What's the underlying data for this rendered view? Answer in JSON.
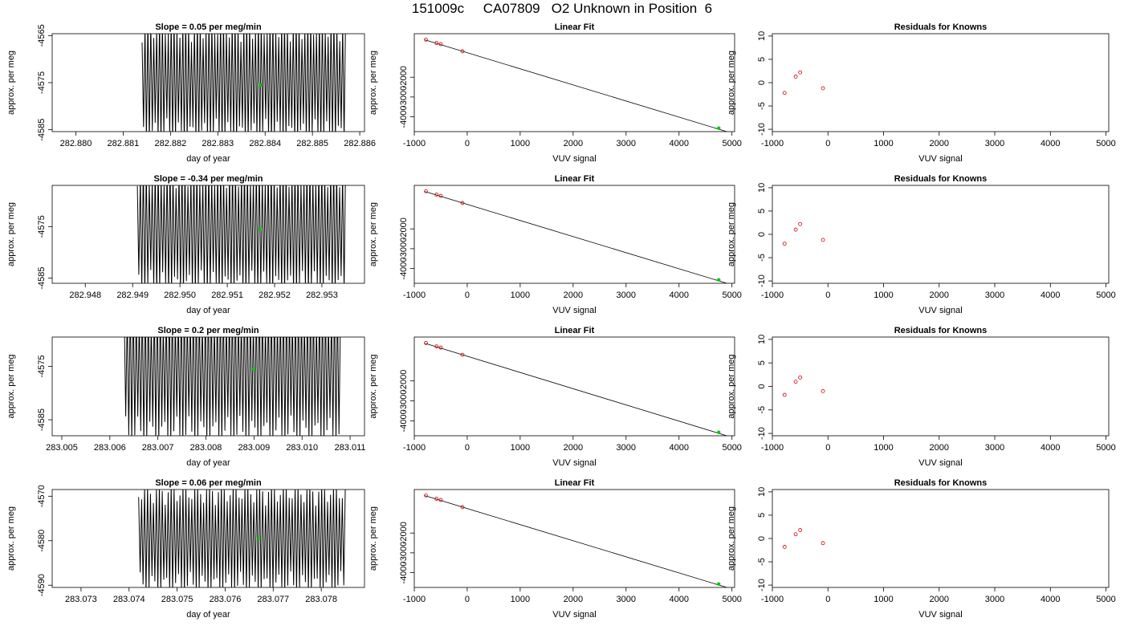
{
  "title": "151009c     CA07809   O2 Unknown in Position  6",
  "colors": {
    "trace": "#000000",
    "known": "#cc0000",
    "unknown": "#00cc00",
    "axis": "#000000"
  },
  "chart_data": [
    {
      "type": "line",
      "title": "Slope =  0.05  per meg/min",
      "xlabel": "day of year",
      "ylabel": "approx. per meg",
      "xlim": [
        282.8795,
        282.8861
      ],
      "ylim": [
        -4585.4,
        -4564.6
      ],
      "xticks": [
        "282.880",
        "282.881",
        "282.882",
        "282.883",
        "282.884",
        "282.885",
        "282.886"
      ],
      "yticks": [
        "-4565",
        "-4575",
        "-4585"
      ],
      "trace": {
        "start": 282.8814,
        "end": 282.8857,
        "center": -4574.5,
        "amplitude": 11.5,
        "cycles": 70
      },
      "unknown_point": {
        "x": 282.8839,
        "y": -4575.5
      }
    },
    {
      "type": "scatter",
      "title": "Linear Fit",
      "xlabel": "VUV signal",
      "ylabel": "approx. per meg",
      "xlim": [
        -1000,
        5050
      ],
      "ylim": [
        -4750,
        200
      ],
      "xticks": [
        "-1000",
        "0",
        "1000",
        "2000",
        "3000",
        "4000",
        "5000"
      ],
      "yticks": [
        "-2000",
        "-3000",
        "-4000"
      ],
      "fit_line": {
        "x": [
          -800,
          4950
        ],
        "y": [
          -110,
          -4790
        ]
      },
      "knowns": [
        {
          "x": -780,
          "y": -100
        },
        {
          "x": -580,
          "y": -270
        },
        {
          "x": -500,
          "y": -330
        },
        {
          "x": -90,
          "y": -690
        }
      ],
      "unknown_point": {
        "x": 4750,
        "y": -4575
      }
    },
    {
      "type": "scatter",
      "title": "Residuals for Knowns",
      "xlabel": "VUV signal",
      "ylabel": "approx. per meg",
      "xlim": [
        -1000,
        5050
      ],
      "ylim": [
        -10.5,
        10.5
      ],
      "xticks": [
        "-1000",
        "0",
        "1000",
        "2000",
        "3000",
        "4000",
        "5000"
      ],
      "yticks": [
        "10",
        "5",
        "0",
        "-5",
        "-10"
      ],
      "knowns": [
        {
          "x": -780,
          "y": -2.2
        },
        {
          "x": -580,
          "y": 1.3
        },
        {
          "x": -500,
          "y": 2.2
        },
        {
          "x": -90,
          "y": -1.2
        }
      ]
    },
    {
      "type": "line",
      "title": "Slope =  -0.34  per meg/min",
      "xlabel": "day of year",
      "ylabel": "approx. per meg",
      "xlim": [
        282.9473,
        282.9539
      ],
      "ylim": [
        -4586.0,
        -4567.0
      ],
      "xticks": [
        "282.948",
        "282.949",
        "282.950",
        "282.951",
        "282.952",
        "282.953"
      ],
      "yticks": [
        "-4575",
        "-4585"
      ],
      "trace": {
        "start": 282.9491,
        "end": 282.9535,
        "center": -4575.5,
        "amplitude": 11.0,
        "cycles": 70
      },
      "unknown_point": {
        "x": 282.9517,
        "y": -4575.5
      }
    },
    {
      "type": "scatter",
      "title": "Linear Fit",
      "xlabel": "VUV signal",
      "ylabel": "approx. per meg",
      "xlim": [
        -1000,
        5050
      ],
      "ylim": [
        -4750,
        200
      ],
      "xticks": [
        "-1000",
        "0",
        "1000",
        "2000",
        "3000",
        "4000",
        "5000"
      ],
      "yticks": [
        "-2000",
        "-3000",
        "-4000"
      ],
      "fit_line": {
        "x": [
          -800,
          4950
        ],
        "y": [
          -110,
          -4790
        ]
      },
      "knowns": [
        {
          "x": -780,
          "y": -100
        },
        {
          "x": -580,
          "y": -270
        },
        {
          "x": -500,
          "y": -330
        },
        {
          "x": -90,
          "y": -690
        }
      ],
      "unknown_point": {
        "x": 4750,
        "y": -4575
      }
    },
    {
      "type": "scatter",
      "title": "Residuals for Knowns",
      "xlabel": "VUV signal",
      "ylabel": "approx. per meg",
      "xlim": [
        -1000,
        5050
      ],
      "ylim": [
        -10.5,
        10.5
      ],
      "xticks": [
        "-1000",
        "0",
        "1000",
        "2000",
        "3000",
        "4000",
        "5000"
      ],
      "yticks": [
        "10",
        "5",
        "0",
        "-5",
        "-10"
      ],
      "knowns": [
        {
          "x": -780,
          "y": -2.0
        },
        {
          "x": -580,
          "y": 1.0
        },
        {
          "x": -500,
          "y": 2.2
        },
        {
          "x": -90,
          "y": -1.2
        }
      ]
    },
    {
      "type": "line",
      "title": "Slope =  0.2  per meg/min",
      "xlabel": "day of year",
      "ylabel": "approx. per meg",
      "xlim": [
        283.0048,
        283.0113
      ],
      "ylim": [
        -4588.0,
        -4569.5
      ],
      "xticks": [
        "283.005",
        "283.006",
        "283.007",
        "283.008",
        "283.009",
        "283.010",
        "283.011"
      ],
      "yticks": [
        "-4575",
        "-4585"
      ],
      "trace": {
        "start": 283.0063,
        "end": 283.0108,
        "center": -4575.5,
        "amplitude": 12.0,
        "cycles": 72
      },
      "unknown_point": {
        "x": 283.009,
        "y": -4575.5
      }
    },
    {
      "type": "scatter",
      "title": "Linear Fit",
      "xlabel": "VUV signal",
      "ylabel": "approx. per meg",
      "xlim": [
        -1000,
        5050
      ],
      "ylim": [
        -4750,
        200
      ],
      "xticks": [
        "-1000",
        "0",
        "1000",
        "2000",
        "3000",
        "4000",
        "5000"
      ],
      "yticks": [
        "-2000",
        "-3000",
        "-4000"
      ],
      "fit_line": {
        "x": [
          -800,
          4950
        ],
        "y": [
          -110,
          -4790
        ]
      },
      "knowns": [
        {
          "x": -780,
          "y": -100
        },
        {
          "x": -580,
          "y": -270
        },
        {
          "x": -500,
          "y": -330
        },
        {
          "x": -90,
          "y": -690
        }
      ],
      "unknown_point": {
        "x": 4750,
        "y": -4575
      }
    },
    {
      "type": "scatter",
      "title": "Residuals for Knowns",
      "xlabel": "VUV signal",
      "ylabel": "approx. per meg",
      "xlim": [
        -1000,
        5050
      ],
      "ylim": [
        -10.5,
        10.5
      ],
      "xticks": [
        "-1000",
        "0",
        "1000",
        "2000",
        "3000",
        "4000",
        "5000"
      ],
      "yticks": [
        "10",
        "5",
        "0",
        "-5",
        "-10"
      ],
      "knowns": [
        {
          "x": -780,
          "y": -1.8
        },
        {
          "x": -580,
          "y": 1.0
        },
        {
          "x": -500,
          "y": 1.9
        },
        {
          "x": -90,
          "y": -1.0
        }
      ]
    },
    {
      "type": "line",
      "title": "Slope =  0.06  per meg/min",
      "xlabel": "day of year",
      "ylabel": "approx. per meg",
      "xlim": [
        283.0724,
        283.0789
      ],
      "ylim": [
        -4590.5,
        -4568.5
      ],
      "xticks": [
        "283.073",
        "283.074",
        "283.075",
        "283.076",
        "283.077",
        "283.078"
      ],
      "yticks": [
        "-4570",
        "-4580",
        "-4590"
      ],
      "trace": {
        "start": 283.0742,
        "end": 283.0785,
        "center": -4579.5,
        "amplitude": 10.5,
        "cycles": 70
      },
      "unknown_point": {
        "x": 283.0767,
        "y": -4579.5
      }
    },
    {
      "type": "scatter",
      "title": "Linear Fit",
      "xlabel": "VUV signal",
      "ylabel": "approx. per meg",
      "xlim": [
        -1000,
        5050
      ],
      "ylim": [
        -4750,
        200
      ],
      "xticks": [
        "-1000",
        "0",
        "1000",
        "2000",
        "3000",
        "4000",
        "5000"
      ],
      "yticks": [
        "-2000",
        "-3000",
        "-4000"
      ],
      "fit_line": {
        "x": [
          -800,
          4950
        ],
        "y": [
          -110,
          -4790
        ]
      },
      "knowns": [
        {
          "x": -780,
          "y": -100
        },
        {
          "x": -580,
          "y": -270
        },
        {
          "x": -500,
          "y": -330
        },
        {
          "x": -90,
          "y": -690
        }
      ],
      "unknown_point": {
        "x": 4750,
        "y": -4575
      }
    },
    {
      "type": "scatter",
      "title": "Residuals for Knowns",
      "xlabel": "VUV signal",
      "ylabel": "approx. per meg",
      "xlim": [
        -1000,
        5050
      ],
      "ylim": [
        -10.5,
        10.5
      ],
      "xticks": [
        "-1000",
        "0",
        "1000",
        "2000",
        "3000",
        "4000",
        "5000"
      ],
      "yticks": [
        "10",
        "5",
        "0",
        "-5",
        "-10"
      ],
      "knowns": [
        {
          "x": -780,
          "y": -1.8
        },
        {
          "x": -580,
          "y": 0.9
        },
        {
          "x": -500,
          "y": 1.8
        },
        {
          "x": -90,
          "y": -1.0
        }
      ]
    }
  ]
}
